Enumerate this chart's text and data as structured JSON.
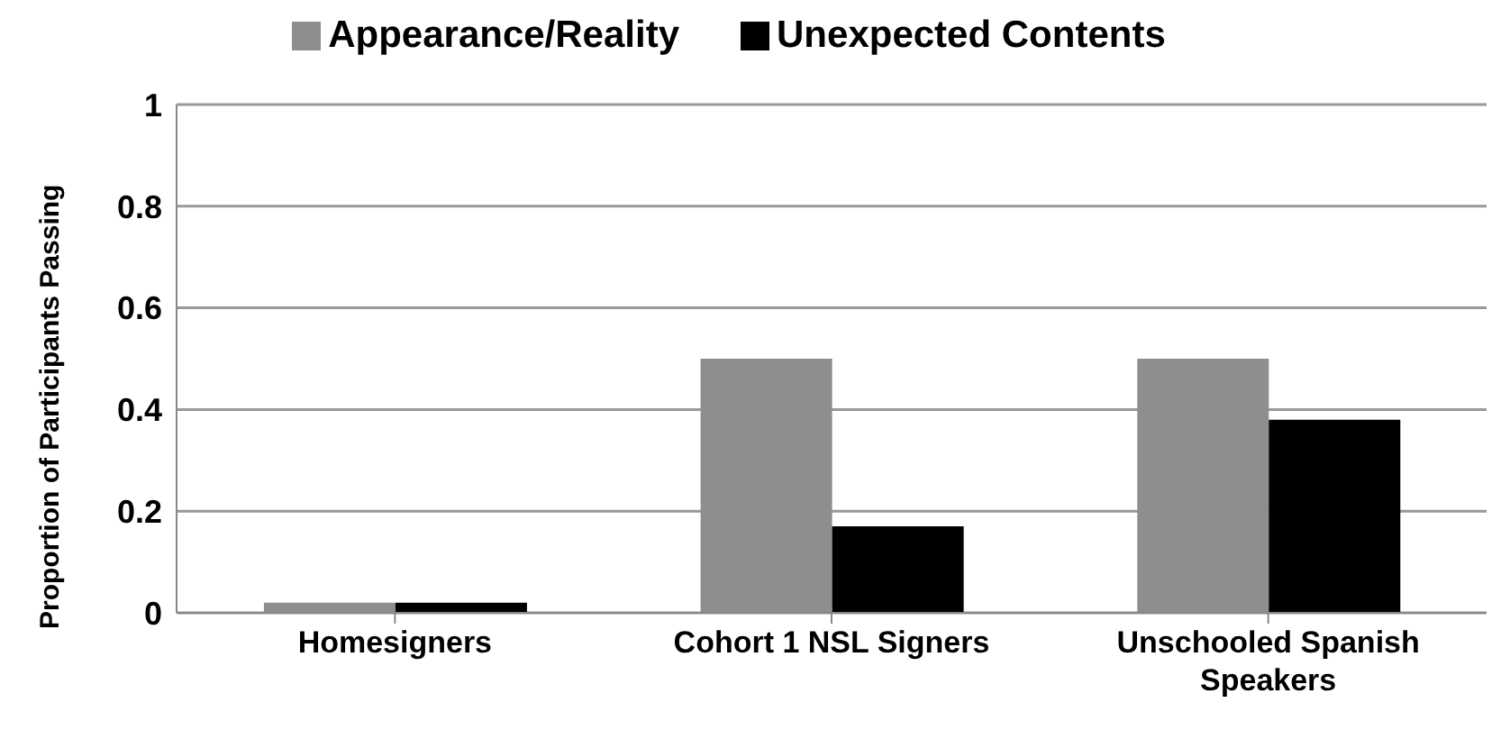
{
  "chart_data": {
    "type": "bar",
    "ylabel": "Proportion of Participants Passing",
    "categories": [
      "Homesigners",
      "Cohort 1 NSL Signers",
      "Unschooled Spanish Speakers"
    ],
    "series": [
      {
        "name": "Appearance/Reality",
        "color": "#8e8e8e",
        "values": [
          0.02,
          0.5,
          0.5
        ]
      },
      {
        "name": "Unexpected Contents",
        "color": "#000000",
        "values": [
          0.02,
          0.17,
          0.38
        ]
      }
    ],
    "ylim": [
      0,
      1
    ],
    "yticks": [
      0,
      0.2,
      0.4,
      0.6,
      0.8,
      1
    ],
    "grid": "y",
    "legend": "top"
  }
}
